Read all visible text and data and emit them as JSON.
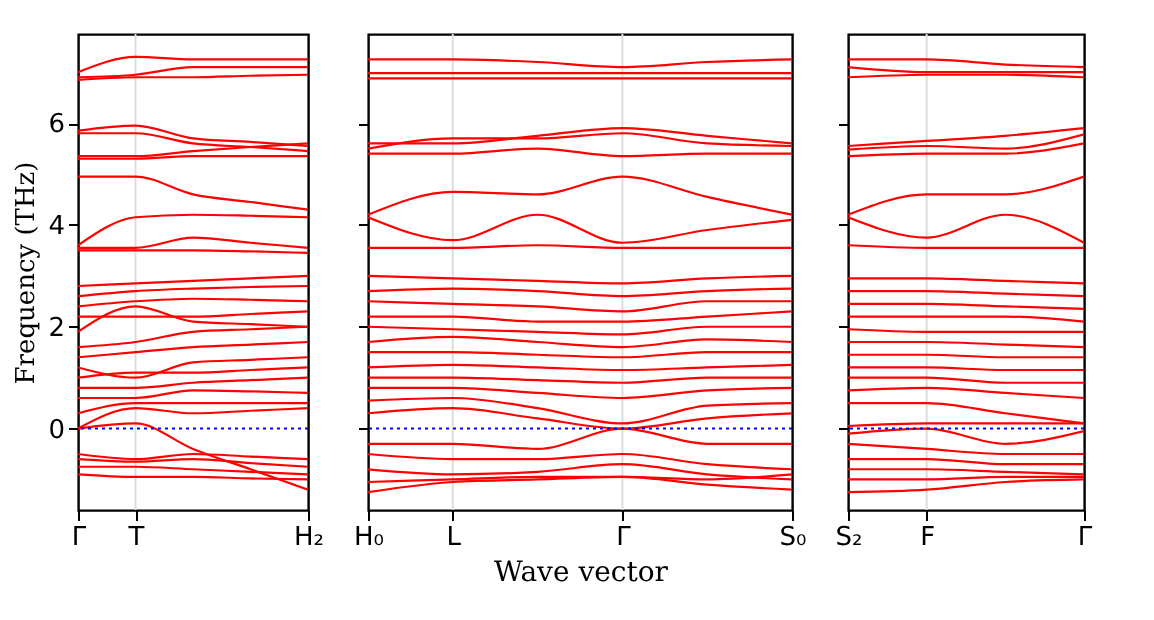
{
  "chart_data": [
    {
      "type": "line",
      "ylabel": "Frequency (THz)",
      "categories": [
        "Γ",
        "T",
        null,
        null,
        "H₂"
      ],
      "ylim": [
        -1.6,
        7.75
      ],
      "yticks": [
        0,
        2,
        4,
        6
      ],
      "ref_lines": [
        {
          "axis": "y",
          "value": 0,
          "color": "#0000ff",
          "line_style": "dotted"
        },
        {
          "axis": "x",
          "value": "T",
          "color": "#dddddd",
          "line_style": "solid"
        }
      ],
      "series": [
        {
          "color": "#ff0000",
          "values": [
            7.0,
            7.3,
            7.25,
            7.25,
            7.25
          ]
        },
        {
          "color": "#ff0000",
          "values": [
            6.9,
            6.95,
            7.1,
            7.1,
            7.1
          ]
        },
        {
          "color": "#ff0000",
          "values": [
            6.85,
            6.9,
            6.9,
            6.93,
            6.95
          ]
        },
        {
          "color": "#ff0000",
          "values": [
            5.85,
            5.95,
            5.7,
            5.63,
            5.55
          ]
        },
        {
          "color": "#ff0000",
          "values": [
            5.8,
            5.8,
            5.6,
            5.53,
            5.45
          ]
        },
        {
          "color": "#ff0000",
          "values": [
            5.35,
            5.35,
            5.45,
            5.53,
            5.6
          ]
        },
        {
          "color": "#ff0000",
          "values": [
            5.3,
            5.3,
            5.35,
            5.35,
            5.35
          ]
        },
        {
          "color": "#ff0000",
          "values": [
            4.95,
            4.95,
            4.6,
            4.45,
            4.3
          ]
        },
        {
          "color": "#ff0000",
          "values": [
            3.6,
            4.15,
            4.2,
            4.18,
            4.15
          ]
        },
        {
          "color": "#ff0000",
          "values": [
            3.55,
            3.55,
            3.75,
            3.65,
            3.55
          ]
        },
        {
          "color": "#ff0000",
          "values": [
            3.5,
            3.5,
            3.5,
            3.48,
            3.45
          ]
        },
        {
          "color": "#ff0000",
          "values": [
            2.8,
            2.85,
            2.9,
            2.95,
            3.0
          ]
        },
        {
          "color": "#ff0000",
          "values": [
            2.6,
            2.7,
            2.75,
            2.78,
            2.8
          ]
        },
        {
          "color": "#ff0000",
          "values": [
            2.4,
            2.5,
            2.55,
            2.53,
            2.5
          ]
        },
        {
          "color": "#ff0000",
          "values": [
            2.2,
            2.2,
            2.2,
            2.25,
            2.3
          ]
        },
        {
          "color": "#ff0000",
          "values": [
            1.9,
            2.4,
            2.1,
            2.05,
            2.0
          ]
        },
        {
          "color": "#ff0000",
          "values": [
            1.6,
            1.7,
            1.9,
            1.95,
            2.0
          ]
        },
        {
          "color": "#ff0000",
          "values": [
            1.4,
            1.5,
            1.6,
            1.65,
            1.7
          ]
        },
        {
          "color": "#ff0000",
          "values": [
            1.2,
            1.0,
            1.3,
            1.35,
            1.4
          ]
        },
        {
          "color": "#ff0000",
          "values": [
            1.0,
            1.1,
            1.1,
            1.15,
            1.2
          ]
        },
        {
          "color": "#ff0000",
          "values": [
            0.8,
            0.8,
            0.9,
            0.95,
            1.0
          ]
        },
        {
          "color": "#ff0000",
          "values": [
            0.6,
            0.6,
            0.75,
            0.73,
            0.7
          ]
        },
        {
          "color": "#ff0000",
          "values": [
            0.3,
            0.5,
            0.5,
            0.5,
            0.5
          ]
        },
        {
          "color": "#ff0000",
          "values": [
            0.0,
            0.4,
            0.3,
            0.35,
            0.4
          ]
        },
        {
          "color": "#ff0000",
          "values": [
            -0.5,
            -0.6,
            -0.5,
            -0.55,
            -0.6
          ]
        },
        {
          "color": "#ff0000",
          "values": [
            -0.6,
            -0.65,
            -0.6,
            -0.68,
            -0.75
          ]
        },
        {
          "color": "#ff0000",
          "values": [
            -0.75,
            -0.75,
            -0.8,
            -0.85,
            -0.9
          ]
        },
        {
          "color": "#ff0000",
          "values": [
            -0.9,
            -0.95,
            -0.95,
            -0.98,
            -1.0
          ]
        },
        {
          "color": "#ff0000",
          "values": [
            0.0,
            0.1,
            -0.4,
            -0.8,
            -1.2
          ]
        }
      ]
    },
    {
      "type": "line",
      "xlabel": "Wave vector",
      "categories": [
        "H₀",
        "L",
        null,
        "Γ",
        null,
        "S₀"
      ],
      "ylim": [
        -1.6,
        7.75
      ],
      "yticks": [
        0,
        2,
        4,
        6
      ],
      "tick_labels": "x",
      "ref_lines": [
        {
          "axis": "y",
          "value": 0,
          "color": "#0000ff",
          "line_style": "dotted"
        },
        {
          "axis": "x",
          "value": "L",
          "color": "#dddddd",
          "line_style": "solid"
        },
        {
          "axis": "x",
          "value": "Γ",
          "color": "#dddddd",
          "line_style": "solid"
        }
      ],
      "series": [
        {
          "color": "#ff0000",
          "values": [
            7.25,
            7.25,
            7.2,
            7.1,
            7.2,
            7.25
          ]
        },
        {
          "color": "#ff0000",
          "values": [
            6.98,
            6.98,
            6.98,
            6.98,
            6.98,
            6.98
          ]
        },
        {
          "color": "#ff0000",
          "values": [
            6.88,
            6.88,
            6.88,
            6.88,
            6.88,
            6.88
          ]
        },
        {
          "color": "#ff0000",
          "values": [
            5.6,
            5.6,
            5.75,
            5.9,
            5.75,
            5.6
          ]
        },
        {
          "color": "#ff0000",
          "values": [
            5.5,
            5.7,
            5.7,
            5.8,
            5.6,
            5.55
          ]
        },
        {
          "color": "#ff0000",
          "values": [
            5.4,
            5.4,
            5.5,
            5.35,
            5.4,
            5.4
          ]
        },
        {
          "color": "#ff0000",
          "values": [
            4.2,
            4.65,
            4.6,
            4.95,
            4.55,
            4.2
          ]
        },
        {
          "color": "#ff0000",
          "values": [
            4.15,
            3.7,
            4.2,
            3.65,
            3.9,
            4.1
          ]
        },
        {
          "color": "#ff0000",
          "values": [
            3.55,
            3.55,
            3.6,
            3.55,
            3.55,
            3.55
          ]
        },
        {
          "color": "#ff0000",
          "values": [
            3.0,
            2.95,
            2.9,
            2.85,
            2.95,
            3.0
          ]
        },
        {
          "color": "#ff0000",
          "values": [
            2.7,
            2.75,
            2.7,
            2.6,
            2.7,
            2.75
          ]
        },
        {
          "color": "#ff0000",
          "values": [
            2.5,
            2.45,
            2.4,
            2.3,
            2.5,
            2.5
          ]
        },
        {
          "color": "#ff0000",
          "values": [
            2.2,
            2.2,
            2.1,
            2.1,
            2.2,
            2.3
          ]
        },
        {
          "color": "#ff0000",
          "values": [
            2.0,
            1.95,
            1.9,
            1.85,
            2.0,
            2.0
          ]
        },
        {
          "color": "#ff0000",
          "values": [
            1.7,
            1.8,
            1.7,
            1.6,
            1.75,
            1.7
          ]
        },
        {
          "color": "#ff0000",
          "values": [
            1.5,
            1.5,
            1.45,
            1.4,
            1.5,
            1.5
          ]
        },
        {
          "color": "#ff0000",
          "values": [
            1.2,
            1.25,
            1.2,
            1.15,
            1.2,
            1.25
          ]
        },
        {
          "color": "#ff0000",
          "values": [
            1.0,
            1.0,
            0.95,
            0.9,
            1.0,
            1.0
          ]
        },
        {
          "color": "#ff0000",
          "values": [
            0.8,
            0.8,
            0.7,
            0.6,
            0.75,
            0.8
          ]
        },
        {
          "color": "#ff0000",
          "values": [
            0.55,
            0.6,
            0.4,
            0.1,
            0.45,
            0.5
          ]
        },
        {
          "color": "#ff0000",
          "values": [
            0.3,
            0.4,
            0.2,
            0.0,
            0.2,
            0.3
          ]
        },
        {
          "color": "#ff0000",
          "values": [
            -0.3,
            -0.3,
            -0.4,
            0.0,
            -0.3,
            -0.3
          ]
        },
        {
          "color": "#ff0000",
          "values": [
            -0.5,
            -0.6,
            -0.6,
            -0.5,
            -0.7,
            -0.8
          ]
        },
        {
          "color": "#ff0000",
          "values": [
            -0.8,
            -0.9,
            -0.85,
            -0.7,
            -0.9,
            -1.0
          ]
        },
        {
          "color": "#ff0000",
          "values": [
            -1.05,
            -1.0,
            -0.95,
            -0.95,
            -1.1,
            -1.2
          ]
        },
        {
          "color": "#ff0000",
          "values": [
            -1.25,
            -1.05,
            -1.0,
            -0.95,
            -1.0,
            -0.9
          ]
        }
      ]
    },
    {
      "type": "line",
      "categories": [
        "S₂",
        "F",
        null,
        "Γ"
      ],
      "ylim": [
        -1.6,
        7.75
      ],
      "yticks": [
        0,
        2,
        4,
        6
      ],
      "tick_labels": "x",
      "ref_lines": [
        {
          "axis": "y",
          "value": 0,
          "color": "#0000ff",
          "line_style": "dotted"
        },
        {
          "axis": "x",
          "value": "F",
          "color": "#dddddd",
          "line_style": "solid"
        }
      ],
      "series": [
        {
          "color": "#ff0000",
          "values": [
            7.25,
            7.25,
            7.15,
            7.1
          ]
        },
        {
          "color": "#ff0000",
          "values": [
            7.1,
            7.0,
            7.0,
            7.0
          ]
        },
        {
          "color": "#ff0000",
          "values": [
            6.9,
            6.95,
            6.95,
            6.9
          ]
        },
        {
          "color": "#ff0000",
          "values": [
            5.55,
            5.65,
            5.75,
            5.9
          ]
        },
        {
          "color": "#ff0000",
          "values": [
            5.48,
            5.55,
            5.5,
            5.78
          ]
        },
        {
          "color": "#ff0000",
          "values": [
            5.35,
            5.4,
            5.4,
            5.6
          ]
        },
        {
          "color": "#ff0000",
          "values": [
            4.2,
            4.6,
            4.6,
            4.95
          ]
        },
        {
          "color": "#ff0000",
          "values": [
            4.15,
            3.75,
            4.2,
            3.65
          ]
        },
        {
          "color": "#ff0000",
          "values": [
            3.6,
            3.55,
            3.55,
            3.55
          ]
        },
        {
          "color": "#ff0000",
          "values": [
            2.95,
            2.95,
            2.9,
            2.85
          ]
        },
        {
          "color": "#ff0000",
          "values": [
            2.7,
            2.7,
            2.65,
            2.6
          ]
        },
        {
          "color": "#ff0000",
          "values": [
            2.45,
            2.45,
            2.4,
            2.35
          ]
        },
        {
          "color": "#ff0000",
          "values": [
            2.2,
            2.2,
            2.2,
            2.1
          ]
        },
        {
          "color": "#ff0000",
          "values": [
            1.95,
            1.9,
            1.9,
            1.9
          ]
        },
        {
          "color": "#ff0000",
          "values": [
            1.7,
            1.7,
            1.65,
            1.6
          ]
        },
        {
          "color": "#ff0000",
          "values": [
            1.45,
            1.45,
            1.4,
            1.4
          ]
        },
        {
          "color": "#ff0000",
          "values": [
            1.2,
            1.2,
            1.15,
            1.15
          ]
        },
        {
          "color": "#ff0000",
          "values": [
            1.0,
            1.0,
            0.9,
            0.9
          ]
        },
        {
          "color": "#ff0000",
          "values": [
            0.75,
            0.8,
            0.7,
            0.6
          ]
        },
        {
          "color": "#ff0000",
          "values": [
            0.5,
            0.5,
            0.3,
            0.1
          ]
        },
        {
          "color": "#ff0000",
          "values": [
            0.05,
            0.1,
            0.1,
            0.1
          ]
        },
        {
          "color": "#ff0000",
          "values": [
            -0.1,
            0.0,
            -0.3,
            -0.05
          ]
        },
        {
          "color": "#ff0000",
          "values": [
            -0.3,
            -0.4,
            -0.5,
            -0.5
          ]
        },
        {
          "color": "#ff0000",
          "values": [
            -0.6,
            -0.6,
            -0.7,
            -0.7
          ]
        },
        {
          "color": "#ff0000",
          "values": [
            -0.8,
            -0.8,
            -0.85,
            -0.9
          ]
        },
        {
          "color": "#ff0000",
          "values": [
            -1.0,
            -1.0,
            -0.95,
            -0.95
          ]
        },
        {
          "color": "#ff0000",
          "values": [
            -1.25,
            -1.2,
            -1.05,
            -1.0
          ]
        }
      ]
    }
  ]
}
